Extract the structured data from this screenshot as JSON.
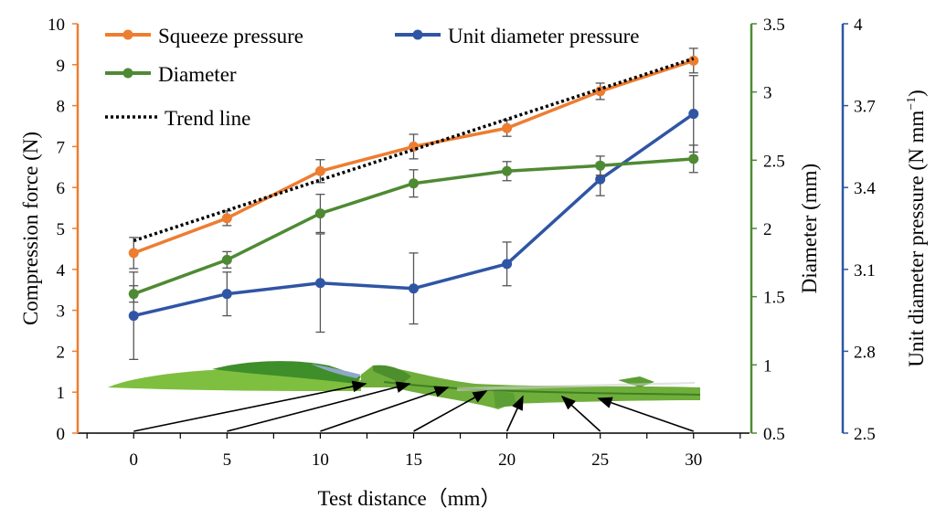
{
  "colors": {
    "squeeze": "#ED7D31",
    "unit": "#2F55A4",
    "diameter": "#4E8A33",
    "trend": "#000000",
    "error": "#555555"
  },
  "chart_data": {
    "type": "line",
    "x": [
      0,
      5,
      10,
      15,
      20,
      25,
      30
    ],
    "x_ticks": [
      "0",
      "5",
      "10",
      "15",
      "20",
      "25",
      "30"
    ],
    "xlabel": "Test distance（mm）",
    "xlim": [
      -3,
      33
    ],
    "axes": {
      "left": {
        "label": "Compression force (N)",
        "min": 0,
        "max": 10,
        "ticks": [
          "0",
          "1",
          "2",
          "3",
          "4",
          "5",
          "6",
          "7",
          "8",
          "9",
          "10"
        ],
        "color": "#ED7D31"
      },
      "right1": {
        "label": "Diameter (mm)",
        "min": 0.5,
        "max": 3.5,
        "ticks": [
          "0.5",
          "1",
          "1.5",
          "2",
          "2.5",
          "3",
          "3.5"
        ],
        "color": "#4E8A33"
      },
      "right2": {
        "label": "Unit diameter pressure (N mm⁻¹)",
        "label_main": "Unit diameter pressure (N mm",
        "label_sup": "−1",
        "label_end": ")",
        "min": 2.5,
        "max": 4.0,
        "ticks": [
          "2.5",
          "2.8",
          "3.1",
          "3.4",
          "3.7",
          "4"
        ],
        "color": "#2F55A4"
      }
    },
    "series": [
      {
        "name": "Squeeze pressure",
        "axis": "left",
        "color": "#ED7D31",
        "values": [
          4.4,
          5.25,
          6.4,
          7.0,
          7.45,
          8.35,
          9.1
        ],
        "errors": [
          0.38,
          0.18,
          0.28,
          0.3,
          0.2,
          0.2,
          0.3
        ]
      },
      {
        "name": "Unit diameter pressure",
        "axis": "right2",
        "color": "#2F55A4",
        "values": [
          2.93,
          3.01,
          3.05,
          3.03,
          3.12,
          3.43,
          3.67
        ],
        "errors": [
          0.16,
          0.08,
          0.18,
          0.13,
          0.08,
          0.06,
          0.14
        ]
      },
      {
        "name": "Diameter",
        "axis": "right1",
        "color": "#4E8A33",
        "values": [
          1.52,
          1.77,
          2.11,
          2.33,
          2.42,
          2.46,
          2.51
        ],
        "errors": [
          0.06,
          0.06,
          0.14,
          0.1,
          0.07,
          0.07,
          0.1
        ]
      },
      {
        "name": "Trend line",
        "axis": "left",
        "color": "#000000",
        "style": "dotted",
        "x_range": [
          0,
          30
        ],
        "values_at_ends": [
          4.7,
          9.15
        ]
      }
    ],
    "legend": {
      "items": [
        "Squeeze pressure",
        "Unit diameter pressure",
        "Diameter",
        "Trend line"
      ],
      "placement": "top-left"
    }
  }
}
